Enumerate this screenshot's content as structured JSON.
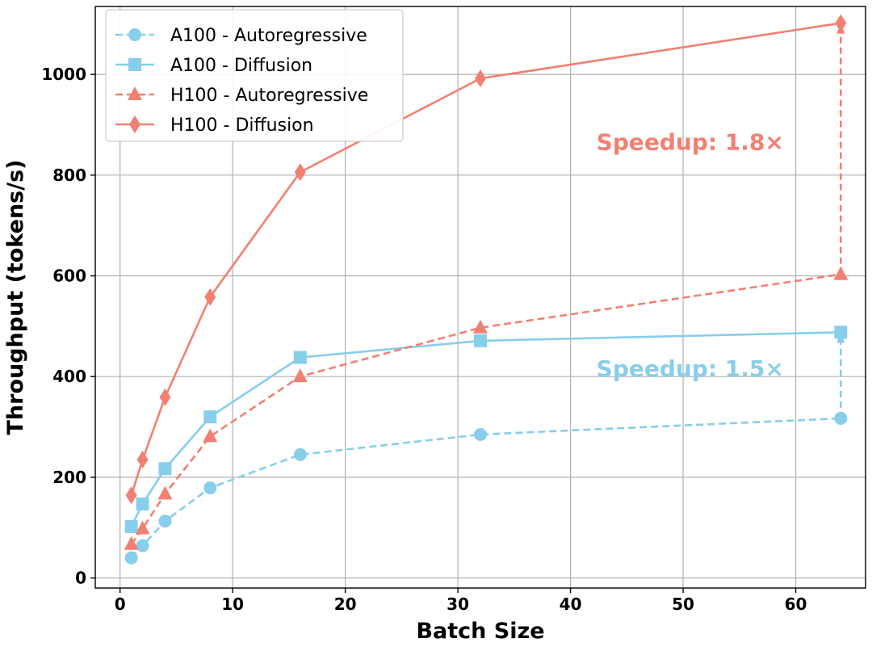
{
  "chart_data": {
    "type": "line",
    "xlabel": "Batch Size",
    "ylabel": "Throughput (tokens/s)",
    "xlim": [
      -2.2,
      66.2
    ],
    "ylim": [
      -20,
      1135
    ],
    "xticks": [
      0,
      10,
      20,
      30,
      40,
      50,
      60
    ],
    "yticks": [
      0,
      200,
      400,
      600,
      800,
      1000
    ],
    "grid": true,
    "legend_position": "top-left",
    "x": [
      1,
      2,
      4,
      8,
      16,
      32,
      64
    ],
    "series": [
      {
        "name": "A100 - Autoregressive",
        "color": "#87CEEB",
        "linestyle": "dashed",
        "marker": "circle",
        "values": [
          40,
          64,
          113,
          179,
          245,
          285,
          317
        ]
      },
      {
        "name": "A100 - Diffusion",
        "color": "#87CEEB",
        "linestyle": "solid",
        "marker": "square",
        "values": [
          102,
          147,
          217,
          320,
          438,
          471,
          488
        ]
      },
      {
        "name": "H100 - Autoregressive",
        "color": "#F28072",
        "linestyle": "dashed",
        "marker": "triangle",
        "values": [
          67,
          98,
          167,
          281,
          400,
          497,
          603
        ]
      },
      {
        "name": "H100 - Diffusion",
        "color": "#F28072",
        "linestyle": "solid",
        "marker": "diamond",
        "values": [
          164,
          235,
          359,
          558,
          806,
          992,
          1102
        ]
      }
    ],
    "annotations": [
      {
        "text": "Speedup: 1.8×",
        "color": "#F28072",
        "x": 42.3,
        "y": 850,
        "arrow_x": 64,
        "arrow_from": 603,
        "arrow_to": 1102
      },
      {
        "text": "Speedup: 1.5×",
        "color": "#87CEEB",
        "x": 42.3,
        "y": 400,
        "arrow_x": 64,
        "arrow_from": 317,
        "arrow_to": 488
      }
    ]
  }
}
